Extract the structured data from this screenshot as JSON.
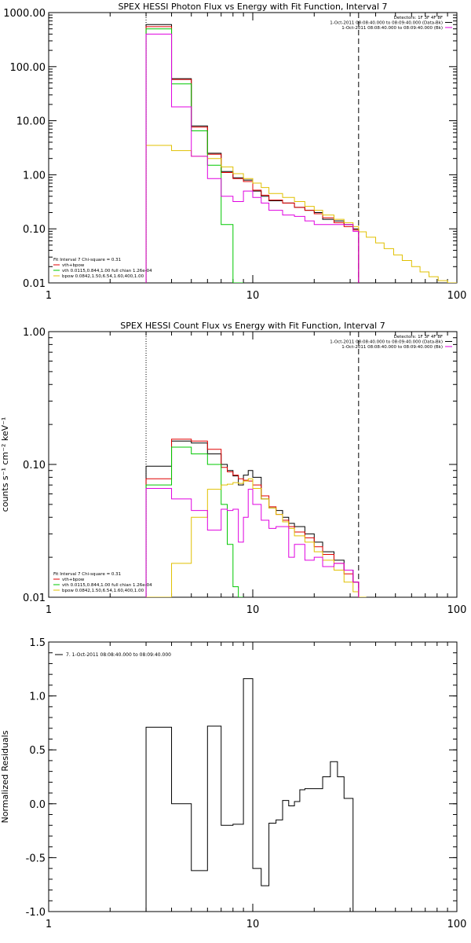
{
  "colors": {
    "total": "#000000",
    "fit": "#e00000",
    "vth": "#00c800",
    "bpow": "#e0c000",
    "bk": "#e000e0"
  },
  "chart_data": [
    {
      "id": "photon",
      "type": "line",
      "title": "SPEX HESSI Photon Flux vs Energy with Fit Function, Interval 7",
      "xlabel": "",
      "ylabel": "",
      "xscale": "log",
      "yscale": "log",
      "xlim": [
        1,
        100
      ],
      "ylim": [
        0.01,
        1000
      ],
      "xticks": [
        {
          "v": 1,
          "label": "1"
        },
        {
          "v": 10,
          "label": "10"
        },
        {
          "v": 100,
          "label": "100"
        }
      ],
      "yticks": [
        {
          "v": 0.01,
          "label": "0.01"
        },
        {
          "v": 0.1,
          "label": "0.10"
        },
        {
          "v": 1,
          "label": "1.00"
        },
        {
          "v": 10,
          "label": "10.00"
        },
        {
          "v": 100,
          "label": "100.00"
        },
        {
          "v": 1000,
          "label": "1000.00"
        }
      ],
      "vlines": [
        {
          "x": 3,
          "style": "dotted"
        },
        {
          "x": 33,
          "style": "dashed"
        }
      ],
      "legend_right": [
        "Detectors: 1F 3F 4F 8F",
        "1-Oct-2011 08:08:40.000 to 08:09:40.000 (Data-Bk)",
        "1-Oct-2011 08:08:40.000 to 08:09:40.000 (Bk)"
      ],
      "legend_left": [
        "Fit Interval  7   Chi-square = 0.31",
        "vth+bpow",
        "vth 0.0115,0.844,1.00  full chian 1.26e-04",
        "bpow 0.0842,1.50,6.54,1.60,400,1.00"
      ],
      "edges": [
        3,
        4,
        5,
        6,
        7,
        8,
        9,
        10,
        11,
        12,
        14,
        16,
        18,
        20,
        22,
        25,
        28,
        31,
        33,
        36,
        40,
        44,
        49,
        54,
        60,
        66,
        73,
        81,
        90,
        100
      ],
      "series": [
        {
          "name": "Data-Bk",
          "color": "total",
          "values": [
            600,
            60,
            8,
            2.5,
            1.15,
            0.88,
            0.8,
            0.5,
            0.4,
            0.33,
            0.3,
            0.25,
            0.22,
            0.2,
            0.15,
            0.14,
            0.12,
            0.1
          ]
        },
        {
          "name": "vth+bpow",
          "color": "fit",
          "values": [
            550,
            58,
            7.6,
            2.4,
            1.1,
            0.85,
            0.75,
            0.52,
            0.42,
            0.34,
            0.3,
            0.25,
            0.22,
            0.19,
            0.16,
            0.13,
            0.11,
            0.095
          ]
        },
        {
          "name": "vth",
          "color": "vth",
          "values": [
            500,
            48,
            6.5,
            1.5,
            0.12,
            0.008
          ]
        },
        {
          "name": "bpow",
          "color": "bpow",
          "values": [
            3.5,
            2.8,
            2.2,
            2.0,
            1.4,
            1.05,
            0.85,
            0.7,
            0.58,
            0.45,
            0.38,
            0.32,
            0.26,
            0.22,
            0.18,
            0.15,
            0.13,
            0.11,
            0.088,
            0.07,
            0.055,
            0.043,
            0.033,
            0.026,
            0.02,
            0.016,
            0.013,
            0.011,
            0.009
          ]
        },
        {
          "name": "Bk",
          "color": "bk",
          "values": [
            400,
            18,
            2.2,
            0.85,
            0.4,
            0.32,
            0.5,
            0.38,
            0.3,
            0.22,
            0.18,
            0.17,
            0.14,
            0.12,
            0.12,
            0.12,
            0.12,
            0.09
          ]
        }
      ]
    },
    {
      "id": "count",
      "type": "line",
      "title": "SPEX HESSI Count Flux vs Energy with Fit Function, Interval 7",
      "xlabel": "",
      "ylabel": "counts s⁻¹ cm⁻² keV⁻¹",
      "xscale": "log",
      "yscale": "log",
      "xlim": [
        1,
        100
      ],
      "ylim": [
        0.01,
        1.0
      ],
      "xticks": [
        {
          "v": 1,
          "label": "1"
        },
        {
          "v": 10,
          "label": "10"
        },
        {
          "v": 100,
          "label": "100"
        }
      ],
      "yticks": [
        {
          "v": 0.01,
          "label": "0.01"
        },
        {
          "v": 0.1,
          "label": "0.10"
        },
        {
          "v": 1,
          "label": "1.00"
        }
      ],
      "vlines": [
        {
          "x": 3,
          "style": "dotted"
        },
        {
          "x": 33,
          "style": "dashed"
        }
      ],
      "legend_right": [
        "Detectors: 1F 3F 4F 8F",
        "1-Oct-2011 08:08:40.000 to 08:09:40.000 (Data-Bk)",
        "1-Oct-2011 08:08:40.000 to 08:09:40.000 (Bk)"
      ],
      "legend_left": [
        "Fit Interval  7   Chi-square = 0.31",
        "vth+bpow",
        "vth 0.0115,0.844,1.00  full chian 1.26e-04",
        "bpow 0.0842,1.50,6.54,1.60,400,1.00"
      ],
      "edges": [
        3,
        4,
        5,
        6,
        7,
        7.5,
        8,
        8.5,
        9,
        9.5,
        10,
        11,
        12,
        13,
        14,
        15,
        16,
        18,
        20,
        22,
        25,
        28,
        31,
        33,
        36
      ],
      "series": [
        {
          "name": "Data-Bk",
          "color": "total",
          "values": [
            0.097,
            0.15,
            0.145,
            0.12,
            0.1,
            0.09,
            0.082,
            0.07,
            0.083,
            0.09,
            0.08,
            0.055,
            0.047,
            0.045,
            0.04,
            0.036,
            0.034,
            0.03,
            0.026,
            0.022,
            0.019,
            0.016,
            0.013
          ]
        },
        {
          "name": "vth+bpow",
          "color": "fit",
          "values": [
            0.078,
            0.155,
            0.15,
            0.13,
            0.095,
            0.088,
            0.083,
            0.078,
            0.076,
            0.075,
            0.07,
            0.058,
            0.048,
            0.042,
            0.038,
            0.034,
            0.031,
            0.028,
            0.024,
            0.021,
            0.018,
            0.015,
            0.013
          ]
        },
        {
          "name": "vth",
          "color": "vth",
          "values": [
            0.07,
            0.135,
            0.12,
            0.1,
            0.05,
            0.025,
            0.012,
            0.007
          ]
        },
        {
          "name": "bpow",
          "color": "bpow",
          "values": [
            0.007,
            0.018,
            0.04,
            0.065,
            0.07,
            0.071,
            0.073,
            0.072,
            0.075,
            0.078,
            0.066,
            0.055,
            0.047,
            0.042,
            0.037,
            0.033,
            0.029,
            0.026,
            0.022,
            0.019,
            0.016,
            0.013,
            0.011,
            0.009
          ]
        },
        {
          "name": "Bk",
          "color": "bk",
          "values": [
            0.066,
            0.055,
            0.045,
            0.032,
            0.046,
            0.045,
            0.046,
            0.026,
            0.04,
            0.065,
            0.05,
            0.038,
            0.033,
            0.034,
            0.034,
            0.02,
            0.025,
            0.019,
            0.02,
            0.017,
            0.018,
            0.016,
            0.013
          ]
        }
      ]
    },
    {
      "id": "resid",
      "type": "line",
      "title": "",
      "xlabel": "",
      "ylabel": "Normalized Residuals",
      "xscale": "log",
      "yscale": "linear",
      "xlim": [
        1,
        100
      ],
      "ylim": [
        -1.0,
        1.5
      ],
      "xticks": [
        {
          "v": 1,
          "label": "1"
        },
        {
          "v": 10,
          "label": "10"
        },
        {
          "v": 100,
          "label": "100"
        }
      ],
      "yticks": [
        {
          "v": -1,
          "label": "-1.0"
        },
        {
          "v": -0.5,
          "label": "-0.5"
        },
        {
          "v": 0,
          "label": "0.0"
        },
        {
          "v": 0.5,
          "label": "0.5"
        },
        {
          "v": 1,
          "label": "1.0"
        },
        {
          "v": 1.5,
          "label": "1.5"
        }
      ],
      "legend_left": [
        "7.  1-Oct-2011 08:08:40.000 to 08:09:40.000"
      ],
      "edges": [
        3,
        4,
        5,
        6,
        7,
        8,
        9,
        10,
        11,
        12,
        13,
        14,
        15,
        16,
        17,
        18,
        20,
        22,
        24,
        26,
        28,
        31,
        33
      ],
      "series": [
        {
          "name": "",
          "color": "total",
          "values": [
            0.71,
            0.0,
            -0.62,
            0.72,
            -0.2,
            -0.19,
            1.16,
            -0.6,
            -0.76,
            -0.18,
            -0.15,
            0.03,
            -0.02,
            0.02,
            0.13,
            0.14,
            0.14,
            0.25,
            0.39,
            0.25,
            0.05
          ]
        }
      ]
    }
  ]
}
